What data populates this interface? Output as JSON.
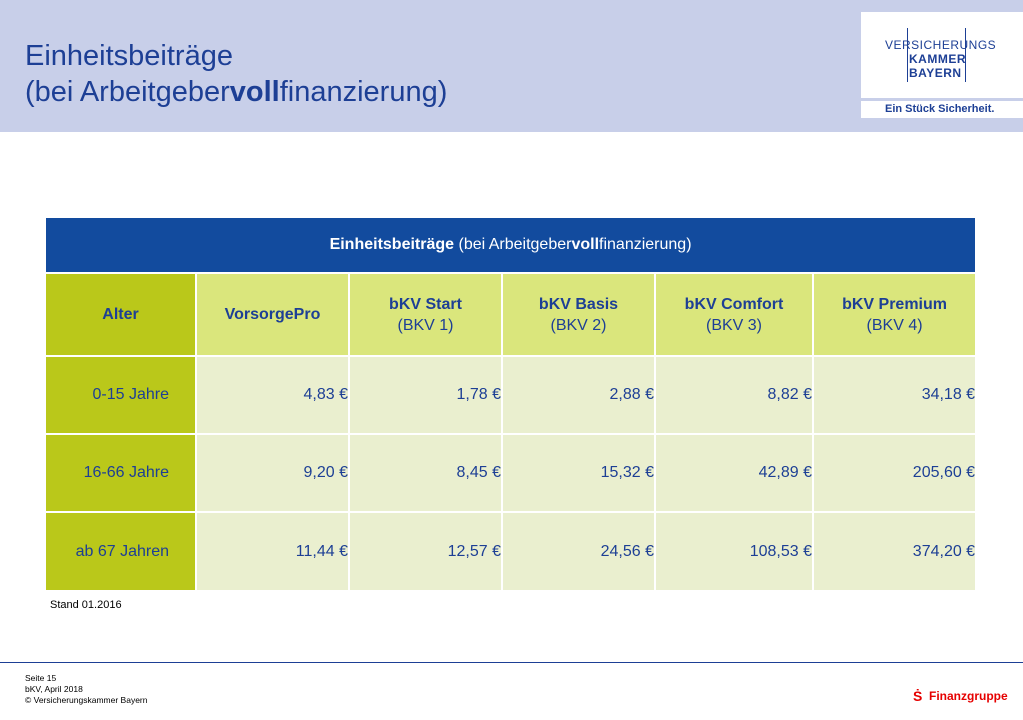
{
  "header": {
    "title_line1": "Einheitsbeiträge",
    "title_line2_a": "(bei Arbeitgeber",
    "title_line2_b": "voll",
    "title_line2_c": "finanzierung)"
  },
  "logo": {
    "line1": "VERSICHERUNGS",
    "line2": "KAMMER",
    "line3": "BAYERN",
    "slogan": "Ein Stück Sicherheit."
  },
  "table": {
    "title_a": "Einheitsbeiträge",
    "title_b": " (bei Arbeitgeber",
    "title_c": "voll",
    "title_d": "finanzierung)",
    "columns": [
      {
        "name": "Alter",
        "code": ""
      },
      {
        "name": "VorsorgePro",
        "code": ""
      },
      {
        "name": "bKV Start",
        "code": "(BKV 1)"
      },
      {
        "name": "bKV Basis",
        "code": "(BKV 2)"
      },
      {
        "name": "bKV Comfort",
        "code": "(BKV 3)"
      },
      {
        "name": "bKV Premium",
        "code": "(BKV 4)"
      }
    ],
    "rows": [
      {
        "age": "0-15 Jahre",
        "values": [
          "4,83 €",
          "1,78 €",
          "2,88 €",
          "8,82 €",
          "34,18 €"
        ]
      },
      {
        "age": "16-66 Jahre",
        "values": [
          "9,20 €",
          "8,45 €",
          "15,32 €",
          "42,89 €",
          "205,60 €"
        ]
      },
      {
        "age": "ab 67 Jahren",
        "values": [
          "11,44 €",
          "12,57 €",
          "24,56 €",
          "108,53 €",
          "374,20 €"
        ]
      }
    ]
  },
  "footnote": "Stand 01.2016",
  "footer": {
    "page": "Seite 15",
    "doc": "bKV, April 2018",
    "copyright": "© Versicherungskammer Bayern",
    "brand": "Finanzgruppe"
  },
  "colors": {
    "header_band": "#c8cfe9",
    "title_blue": "#1d3f95",
    "table_title_bg": "#124b9e",
    "col_head_bg": "#dae67c",
    "age_col_bg": "#bac81a",
    "cell_bg": "#eaefcf",
    "brand_red": "#e60000"
  }
}
